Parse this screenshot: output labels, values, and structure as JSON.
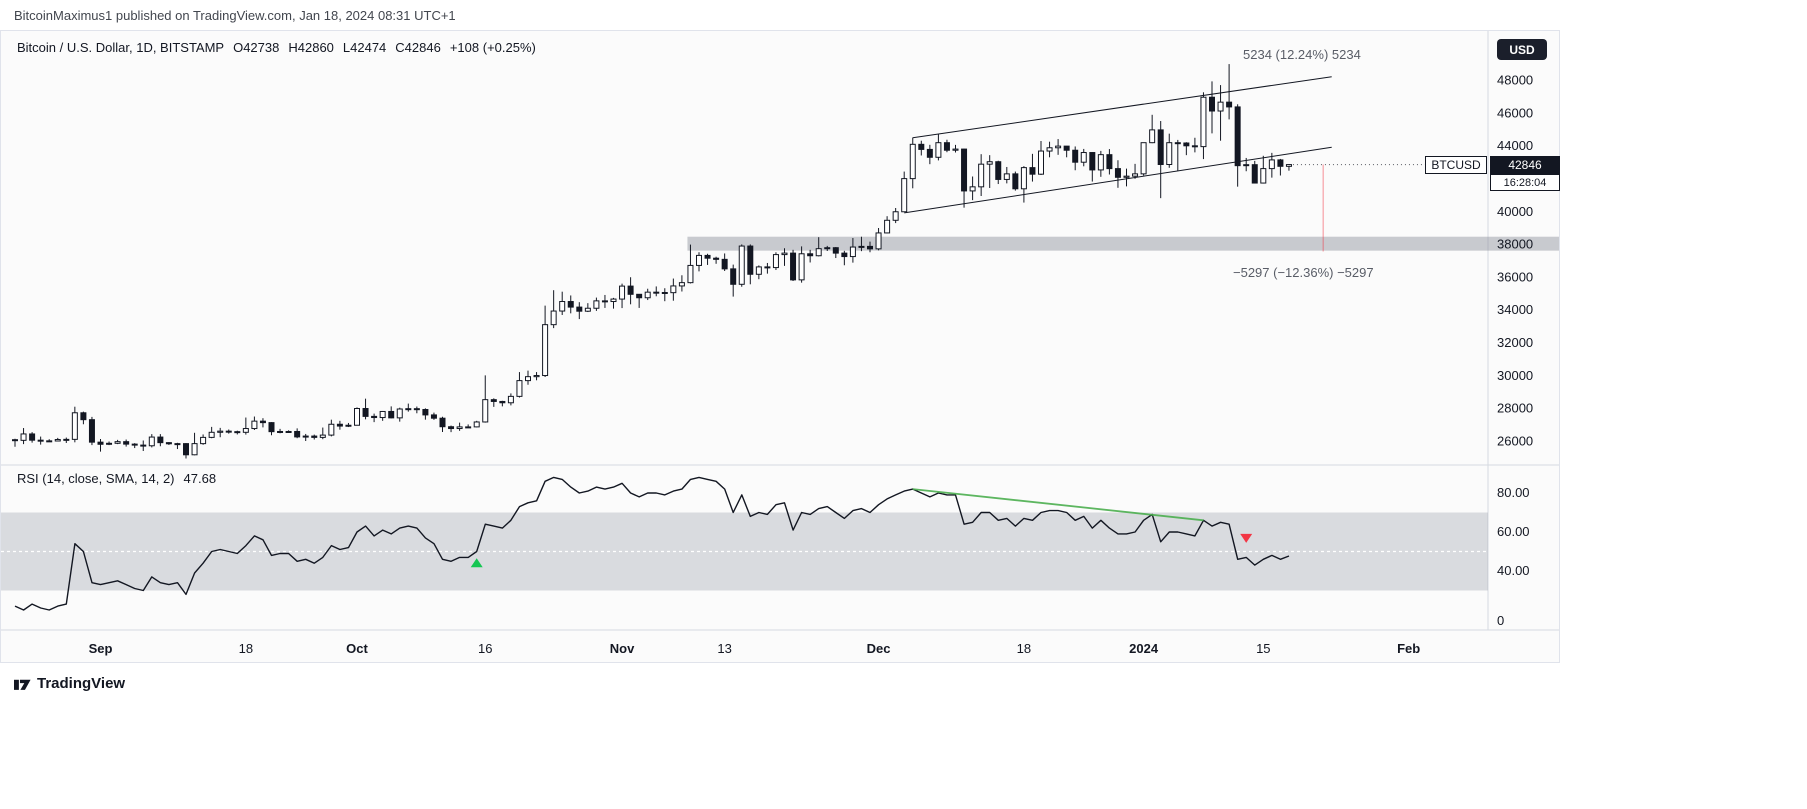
{
  "attribution": {
    "text": "BitcoinMaximus1 published on TradingView.com, Jan 18, 2024 08:31 UTC+1"
  },
  "header": {
    "symbol_title": "Bitcoin / U.S. Dollar, 1D, BITSTAMP",
    "ohlc": {
      "o": "O42738",
      "h": "H42860",
      "l": "L42474",
      "c": "C42846",
      "change": "+108 (+0.25%)"
    }
  },
  "price_scale": {
    "currency_button": "USD",
    "symbol_tag": "BTCUSD",
    "last_price": "42846",
    "countdown": "16:28:04"
  },
  "rsi_pane": {
    "legend": "RSI (14, close, SMA, 14, 2)",
    "value": "47.68"
  },
  "footer": {
    "brand": "TradingView"
  },
  "chart_data": {
    "type": "candlestick",
    "title": "Bitcoin / U.S. Dollar, 1D, BITSTAMP",
    "last_close": 42846,
    "colors": {
      "up_fill": "#ffffff",
      "down_fill": "#131722",
      "border": "#131722",
      "rsi_line": "#131722",
      "band": "#9aa0ab",
      "zone": "#8a8e99",
      "axis_text": "#131722",
      "separator": "#d6d9e0"
    },
    "price_axis": {
      "tick_values": [
        48000,
        46000,
        44000,
        40000,
        38000,
        36000,
        34000,
        32000,
        30000,
        28000,
        26000
      ]
    },
    "time_axis": {
      "ticks": [
        {
          "label": "Sep",
          "idx": 10,
          "major": true
        },
        {
          "label": "18",
          "idx": 27,
          "major": false
        },
        {
          "label": "Oct",
          "idx": 40,
          "major": true
        },
        {
          "label": "16",
          "idx": 55,
          "major": false
        },
        {
          "label": "Nov",
          "idx": 71,
          "major": true
        },
        {
          "label": "13",
          "idx": 83,
          "major": false
        },
        {
          "label": "Dec",
          "idx": 101,
          "major": true
        },
        {
          "label": "18",
          "idx": 118,
          "major": false
        },
        {
          "label": "2024",
          "idx": 132,
          "major": true
        },
        {
          "label": "15",
          "idx": 146,
          "major": false
        },
        {
          "label": "Feb",
          "idx": 163,
          "major": true
        }
      ]
    },
    "candles": [
      [
        26080,
        26140,
        25650,
        26040
      ],
      [
        26040,
        26790,
        25810,
        26430
      ],
      [
        26430,
        26540,
        25900,
        26050
      ],
      [
        26050,
        26270,
        25780,
        26010
      ],
      [
        26010,
        26110,
        25960,
        26000
      ],
      [
        26000,
        26190,
        25970,
        26090
      ],
      [
        26090,
        26210,
        25880,
        26100
      ],
      [
        26100,
        28090,
        25920,
        27720
      ],
      [
        27720,
        27790,
        27020,
        27300
      ],
      [
        27300,
        27470,
        25750,
        25930
      ],
      [
        25930,
        26120,
        25350,
        25800
      ],
      [
        25800,
        25970,
        25750,
        25860
      ],
      [
        25860,
        26070,
        25810,
        25960
      ],
      [
        25960,
        26090,
        25660,
        25810
      ],
      [
        25810,
        25870,
        25570,
        25750
      ],
      [
        25750,
        26030,
        25390,
        25710
      ],
      [
        25710,
        26420,
        25610,
        26240
      ],
      [
        26240,
        26420,
        25680,
        25900
      ],
      [
        25900,
        25930,
        25760,
        25830
      ],
      [
        25830,
        25890,
        25510,
        25840
      ],
      [
        25840,
        25870,
        24930,
        25160
      ],
      [
        25160,
        26500,
        25130,
        25840
      ],
      [
        25840,
        26400,
        25770,
        26220
      ],
      [
        26220,
        26860,
        26170,
        26530
      ],
      [
        26530,
        26800,
        26230,
        26600
      ],
      [
        26600,
        26700,
        26450,
        26570
      ],
      [
        26570,
        26630,
        26400,
        26530
      ],
      [
        26530,
        27430,
        26390,
        26760
      ],
      [
        26760,
        27490,
        26670,
        27210
      ],
      [
        27210,
        27390,
        26830,
        27120
      ],
      [
        27120,
        27150,
        26350,
        26570
      ],
      [
        26570,
        26740,
        26470,
        26580
      ],
      [
        26580,
        26650,
        26500,
        26580
      ],
      [
        26580,
        26770,
        26170,
        26250
      ],
      [
        26250,
        26430,
        26000,
        26300
      ],
      [
        26300,
        26390,
        26090,
        26220
      ],
      [
        26220,
        26820,
        26110,
        26360
      ],
      [
        26360,
        27300,
        26280,
        27020
      ],
      [
        27020,
        27230,
        26690,
        26910
      ],
      [
        26910,
        27100,
        26850,
        26960
      ],
      [
        26960,
        28050,
        26960,
        27980
      ],
      [
        27980,
        28580,
        27320,
        27500
      ],
      [
        27500,
        27670,
        27150,
        27430
      ],
      [
        27430,
        27830,
        27230,
        27800
      ],
      [
        27800,
        28110,
        27380,
        27410
      ],
      [
        27410,
        28030,
        27180,
        27950
      ],
      [
        27950,
        28280,
        27790,
        27970
      ],
      [
        27970,
        28100,
        27690,
        27920
      ],
      [
        27920,
        27990,
        27300,
        27590
      ],
      [
        27590,
        27730,
        27290,
        27390
      ],
      [
        27390,
        27480,
        26550,
        26870
      ],
      [
        26870,
        26940,
        26540,
        26760
      ],
      [
        26760,
        27120,
        26620,
        26860
      ],
      [
        26860,
        27010,
        26800,
        26860
      ],
      [
        26860,
        27230,
        26830,
        27160
      ],
      [
        27160,
        30000,
        27120,
        28520
      ],
      [
        28520,
        28600,
        28080,
        28410
      ],
      [
        28410,
        28450,
        28110,
        28330
      ],
      [
        28330,
        28900,
        28170,
        28720
      ],
      [
        28720,
        30200,
        28650,
        29680
      ],
      [
        29680,
        30290,
        29430,
        29920
      ],
      [
        29920,
        30200,
        29700,
        29990
      ],
      [
        29990,
        34250,
        29900,
        33090
      ],
      [
        33090,
        35190,
        32880,
        33920
      ],
      [
        33920,
        35100,
        33680,
        34500
      ],
      [
        34500,
        34870,
        33780,
        34160
      ],
      [
        34160,
        34460,
        33430,
        33910
      ],
      [
        33910,
        34400,
        33860,
        34090
      ],
      [
        34090,
        34740,
        33930,
        34540
      ],
      [
        34540,
        34900,
        34110,
        34500
      ],
      [
        34500,
        34720,
        34070,
        34650
      ],
      [
        34650,
        35590,
        34100,
        35440
      ],
      [
        35440,
        35980,
        34330,
        34940
      ],
      [
        34940,
        34950,
        34110,
        34730
      ],
      [
        34730,
        35280,
        34590,
        35070
      ],
      [
        35070,
        35420,
        34820,
        35050
      ],
      [
        35050,
        35310,
        34520,
        35040
      ],
      [
        35040,
        35900,
        34550,
        35450
      ],
      [
        35450,
        36100,
        35110,
        35650
      ],
      [
        35650,
        37970,
        35600,
        36700
      ],
      [
        36700,
        37500,
        36340,
        37310
      ],
      [
        37310,
        37410,
        36730,
        37140
      ],
      [
        37140,
        37230,
        36800,
        37070
      ],
      [
        37070,
        37430,
        36360,
        36490
      ],
      [
        36490,
        36750,
        34800,
        35550
      ],
      [
        35550,
        37980,
        35400,
        37880
      ],
      [
        37880,
        37980,
        35550,
        36160
      ],
      [
        36160,
        36700,
        35860,
        36610
      ],
      [
        36610,
        36850,
        36200,
        36570
      ],
      [
        36570,
        37500,
        36420,
        37360
      ],
      [
        37360,
        37750,
        36670,
        37450
      ],
      [
        37450,
        37650,
        35750,
        35820
      ],
      [
        35820,
        37860,
        35650,
        37410
      ],
      [
        37410,
        37650,
        36880,
        37290
      ],
      [
        37290,
        38420,
        37250,
        37720
      ],
      [
        37720,
        37890,
        37580,
        37780
      ],
      [
        37780,
        37820,
        37150,
        37450
      ],
      [
        37450,
        37590,
        36710,
        37240
      ],
      [
        37240,
        38370,
        36870,
        37820
      ],
      [
        37820,
        38450,
        37570,
        37860
      ],
      [
        37860,
        38150,
        37500,
        37710
      ],
      [
        37710,
        38980,
        37620,
        38680
      ],
      [
        38680,
        39700,
        38650,
        39450
      ],
      [
        39450,
        40200,
        39280,
        39970
      ],
      [
        39970,
        42420,
        39970,
        41990
      ],
      [
        41990,
        44490,
        41400,
        44080
      ],
      [
        44080,
        44300,
        43400,
        43770
      ],
      [
        43770,
        44050,
        42870,
        43290
      ],
      [
        43290,
        44700,
        43100,
        44180
      ],
      [
        44180,
        44360,
        43600,
        43720
      ],
      [
        43720,
        44050,
        43580,
        43790
      ],
      [
        43790,
        43810,
        40220,
        41240
      ],
      [
        41240,
        42120,
        40680,
        41490
      ],
      [
        41490,
        43480,
        40930,
        42870
      ],
      [
        42870,
        43420,
        41420,
        43020
      ],
      [
        43020,
        43080,
        41660,
        41940
      ],
      [
        41940,
        42700,
        41700,
        42280
      ],
      [
        42280,
        42420,
        41260,
        41370
      ],
      [
        41370,
        42750,
        40530,
        42660
      ],
      [
        42660,
        43500,
        41810,
        42260
      ],
      [
        42260,
        44280,
        42210,
        43670
      ],
      [
        43670,
        44240,
        43290,
        43870
      ],
      [
        43870,
        44400,
        43440,
        43970
      ],
      [
        43970,
        43980,
        43290,
        43720
      ],
      [
        43720,
        43950,
        42500,
        42990
      ],
      [
        42990,
        43800,
        42740,
        43580
      ],
      [
        43580,
        43600,
        41810,
        42520
      ],
      [
        42520,
        43680,
        42100,
        43450
      ],
      [
        43450,
        43790,
        42240,
        42600
      ],
      [
        42600,
        43110,
        41430,
        42070
      ],
      [
        42070,
        42600,
        41520,
        42140
      ],
      [
        42140,
        42890,
        41980,
        42280
      ],
      [
        42280,
        44180,
        42180,
        44180
      ],
      [
        44180,
        45880,
        44150,
        44960
      ],
      [
        44960,
        45500,
        40800,
        42850
      ],
      [
        42850,
        44730,
        42650,
        44180
      ],
      [
        44180,
        44350,
        42450,
        44160
      ],
      [
        44160,
        44210,
        43420,
        43990
      ],
      [
        43990,
        44480,
        43590,
        43940
      ],
      [
        43940,
        47250,
        43180,
        46950
      ],
      [
        46950,
        47920,
        44750,
        46110
      ],
      [
        46110,
        47690,
        44300,
        46650
      ],
      [
        46650,
        48970,
        45600,
        46360
      ],
      [
        46360,
        46520,
        41500,
        42780
      ],
      [
        42780,
        43250,
        42440,
        42840
      ],
      [
        42840,
        43070,
        41720,
        41720
      ],
      [
        41720,
        43380,
        41690,
        42600
      ],
      [
        42600,
        43560,
        42050,
        43130
      ],
      [
        43130,
        43190,
        42180,
        42740
      ],
      [
        42738,
        42860,
        42474,
        42846
      ]
    ],
    "rsi": {
      "values": [
        22,
        20,
        23,
        21,
        20,
        22,
        23,
        54,
        50,
        34,
        33,
        34,
        35,
        33,
        31,
        30,
        37,
        34,
        33,
        34,
        28,
        39,
        44,
        50,
        51,
        50,
        49,
        53,
        58,
        56,
        48,
        49,
        49,
        45,
        46,
        44,
        47,
        53,
        51,
        52,
        60,
        63,
        58,
        61,
        59,
        62,
        63,
        62,
        57,
        54,
        46,
        45,
        47,
        47,
        50,
        64,
        63,
        62,
        66,
        73,
        75,
        76,
        86,
        88,
        87,
        83,
        80,
        81,
        83,
        82,
        83,
        85,
        80,
        78,
        80,
        80,
        79,
        81,
        82,
        87,
        88,
        87,
        86,
        82,
        70,
        79,
        68,
        70,
        69,
        74,
        75,
        61,
        70,
        69,
        72,
        73,
        70,
        67,
        71,
        72,
        70,
        74,
        77,
        79,
        81,
        82,
        80,
        78,
        80,
        79,
        79,
        64,
        65,
        70,
        70,
        66,
        67,
        63,
        67,
        66,
        70,
        71,
        71,
        70,
        66,
        68,
        62,
        66,
        62,
        59,
        59,
        60,
        66,
        69,
        55,
        60,
        60,
        59,
        58,
        66,
        63,
        65,
        64,
        46,
        47,
        43,
        46,
        48,
        46,
        47.68
      ],
      "current_value": 47.68,
      "band": [
        30,
        70
      ],
      "midline": 50,
      "axis_labels": [
        {
          "label": "80.00",
          "value": 80
        },
        {
          "label": "60.00",
          "value": 60
        },
        {
          "label": "40.00",
          "value": 40
        },
        {
          "label": "0",
          "value": 0
        }
      ],
      "trendline": {
        "from_idx": 105,
        "from_value": 82,
        "to_idx": 139,
        "to_value": 66,
        "color": "#4caf50"
      },
      "markers": [
        {
          "type": "up",
          "idx": 54,
          "value": 44,
          "color": "#16c653"
        },
        {
          "type": "down",
          "idx": 144,
          "value": 57,
          "color": "#f23645"
        }
      ]
    },
    "overlays": {
      "channel": {
        "lower": {
          "x1_idx": 104,
          "p1": 39900,
          "x2_idx": 154,
          "p2": 43900
        },
        "upper": {
          "x1_idx": 105,
          "p1": 44480,
          "x2_idx": 154,
          "p2": 48200
        },
        "color": "#131722"
      },
      "zone": {
        "start_idx": 79,
        "price_top": 38450,
        "price_bottom": 37600,
        "color": "#8a8e99"
      },
      "measure_up": {
        "text": "5234 (12.24%) 5234"
      },
      "measure_down": {
        "text": "−5297 (−12.36%) −5297"
      },
      "measure_line": {
        "idx": 153,
        "p1": 42850,
        "p2": 37550,
        "color": "#f23645"
      }
    }
  }
}
